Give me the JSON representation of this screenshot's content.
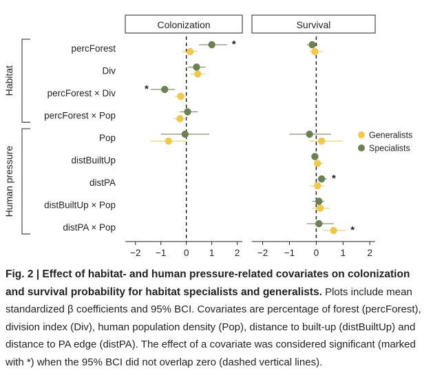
{
  "chart_data": {
    "type": "scatter",
    "panels": [
      "Colonization",
      "Survival"
    ],
    "covariates": [
      "percForest",
      "Div",
      "percForest × Div",
      "percForest × Pop",
      "Pop",
      "distBuiltUp",
      "distPA",
      "distBuiltUp × Pop",
      "distPA × Pop"
    ],
    "groups": [
      {
        "label": "Habitat",
        "covariates": [
          "percForest",
          "Div",
          "percForest × Div",
          "percForest × Pop"
        ]
      },
      {
        "label": "Human pressure",
        "covariates": [
          "Pop",
          "distBuiltUp",
          "distPA",
          "distBuiltUp × Pop",
          "distPA × Pop"
        ]
      }
    ],
    "xlim": [
      -2.4,
      2.2
    ],
    "xticks": [
      -2,
      -1,
      0,
      1,
      2
    ],
    "xtick_labels": [
      "−2",
      "−1",
      "0",
      "1",
      "2"
    ],
    "reference_line": 0,
    "legend_position": "right",
    "significance_marker": "*",
    "series": [
      {
        "name": "Generalists",
        "color": "#f2c84b",
        "colonization": {
          "mean": [
            0.15,
            0.45,
            -0.22,
            -0.25,
            -0.7,
            null,
            null,
            null,
            null
          ],
          "lower": [
            -0.15,
            0.15,
            -0.45,
            -0.5,
            -1.4,
            null,
            null,
            null,
            null
          ],
          "upper": [
            0.45,
            0.75,
            0.0,
            0.0,
            0.0,
            null,
            null,
            null,
            null
          ],
          "significant": [
            false,
            false,
            false,
            false,
            false,
            false,
            false,
            false,
            false
          ]
        },
        "survival": {
          "mean": [
            -0.05,
            null,
            null,
            null,
            0.2,
            0.05,
            0.05,
            0.15,
            0.65
          ],
          "lower": [
            -0.25,
            null,
            null,
            null,
            -0.25,
            -0.1,
            -0.25,
            -0.15,
            0.25
          ],
          "upper": [
            0.25,
            null,
            null,
            null,
            1.0,
            0.25,
            0.3,
            0.5,
            1.1
          ],
          "significant": [
            false,
            false,
            false,
            false,
            false,
            false,
            false,
            false,
            true
          ]
        }
      },
      {
        "name": "Specialists",
        "color": "#6b8152",
        "colonization": {
          "mean": [
            1.0,
            0.4,
            -0.85,
            0.05,
            -0.05,
            null,
            null,
            null,
            null
          ],
          "lower": [
            0.5,
            0.05,
            -1.4,
            -0.25,
            -1.0,
            null,
            null,
            null,
            null
          ],
          "upper": [
            1.6,
            0.75,
            -0.45,
            0.45,
            0.9,
            null,
            null,
            null,
            null
          ],
          "significant": [
            true,
            false,
            true,
            false,
            false,
            false,
            false,
            false,
            false
          ]
        },
        "survival": {
          "mean": [
            -0.15,
            null,
            null,
            null,
            -0.25,
            -0.05,
            0.2,
            0.1,
            0.1
          ],
          "lower": [
            -0.35,
            null,
            null,
            null,
            -1.0,
            -0.15,
            0.05,
            -0.15,
            -0.35
          ],
          "upper": [
            0.05,
            null,
            null,
            null,
            0.55,
            0.05,
            0.4,
            0.3,
            0.65
          ],
          "significant": [
            false,
            false,
            false,
            false,
            false,
            false,
            true,
            false,
            false
          ]
        }
      }
    ]
  },
  "caption": {
    "title": "Fig. 2 | Effect of habitat- and human pressure-related covariates on colonization and survival probability for habitat specialists and generalists.",
    "body": "Plots include mean standardized β coefficients and 95% BCI. Covariates are percentage of forest (percForest), division index (Div), human population density (Pop), distance to built-up (distBuiltUp) and distance to PA edge (distPA). The effect of a covariate was considered significant (marked with *) when the 95% BCI did not overlap zero (dashed vertical lines)."
  }
}
